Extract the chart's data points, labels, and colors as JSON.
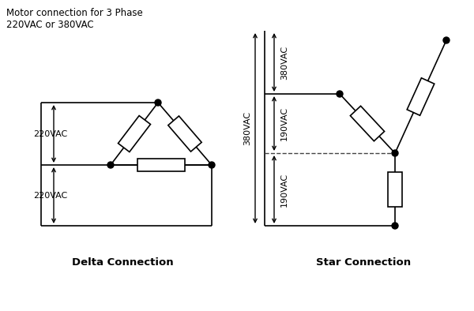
{
  "title": "Motor connection for 3 Phase\n220VAC or 380VAC",
  "delta_label": "Delta Connection",
  "star_label": "Star Connection",
  "bg_color": "#ffffff",
  "line_color": "#000000",
  "dot_color": "#000000",
  "text_color": "#000000",
  "figsize": [
    6.0,
    3.94
  ],
  "dpi": 100
}
